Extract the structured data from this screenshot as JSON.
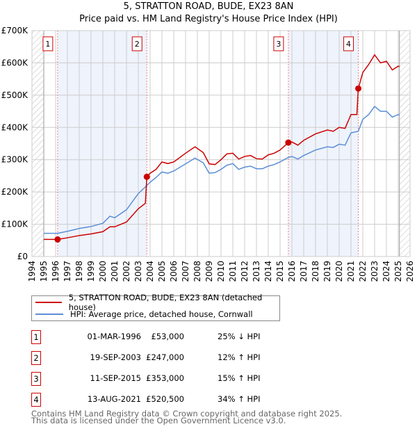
{
  "title_line1": "5, STRATTON ROAD, BUDE, EX23 8AN",
  "title_line2": "Price paid vs. HM Land Registry's House Price Index (HPI)",
  "chart_data": {
    "type": "line",
    "title": "5, STRATTON ROAD, BUDE, EX23 8AN — Price paid vs. HM Land Registry's House Price Index (HPI)",
    "xlim": [
      1994,
      2026
    ],
    "ylim": [
      0,
      700000
    ],
    "x_ticks": [
      "1994",
      "1995",
      "1996",
      "1997",
      "1998",
      "1999",
      "2000",
      "2001",
      "2002",
      "2003",
      "2004",
      "2005",
      "2006",
      "2007",
      "2008",
      "2009",
      "2010",
      "2011",
      "2012",
      "2013",
      "2014",
      "2015",
      "2016",
      "2017",
      "2018",
      "2019",
      "2020",
      "2021",
      "2022",
      "2023",
      "2024",
      "2025",
      "2026"
    ],
    "y_ticks": [
      {
        "v": 0,
        "label": "£0"
      },
      {
        "v": 100000,
        "label": "£100K"
      },
      {
        "v": 200000,
        "label": "£200K"
      },
      {
        "v": 300000,
        "label": "£300K"
      },
      {
        "v": 400000,
        "label": "£400K"
      },
      {
        "v": 500000,
        "label": "£500K"
      },
      {
        "v": 600000,
        "label": "£600K"
      },
      {
        "v": 700000,
        "label": "£700K"
      }
    ],
    "grid": true,
    "data_range": [
      1995,
      2025.1
    ],
    "shaded_spans": [
      [
        1996.17,
        2003.72
      ],
      [
        2015.7,
        2021.62
      ]
    ],
    "series": [
      {
        "name": "5, STRATTON ROAD, BUDE, EX23 8AN (detached house)",
        "color": "#cc0000",
        "x": [
          1995,
          1996.17,
          1997,
          1998,
          1999,
          2000,
          2000.6,
          2001,
          2002,
          2003,
          2003.6,
          2003.72,
          2004,
          2004.5,
          2005,
          2005.5,
          2006,
          2007,
          2007.8,
          2008.5,
          2009,
          2009.5,
          2010,
          2010.5,
          2011,
          2011.5,
          2012,
          2012.5,
          2013,
          2013.5,
          2014,
          2014.5,
          2015,
          2015.7,
          2016,
          2016.5,
          2017,
          2018,
          2019,
          2019.5,
          2020,
          2020.5,
          2021,
          2021.5,
          2021.62,
          2022,
          2022.5,
          2023,
          2023.5,
          2024,
          2024.5,
          2025,
          2025.1
        ],
        "y": [
          53000,
          53000,
          58000,
          65000,
          70000,
          77000,
          92000,
          92000,
          107000,
          148000,
          165000,
          247000,
          258000,
          270000,
          293000,
          288000,
          293000,
          320000,
          340000,
          322000,
          287000,
          285000,
          300000,
          318000,
          320000,
          302000,
          310000,
          313000,
          303000,
          302000,
          315000,
          320000,
          330000,
          353000,
          355000,
          345000,
          360000,
          380000,
          392000,
          388000,
          400000,
          397000,
          440000,
          440000,
          520500,
          570000,
          595000,
          625000,
          600000,
          605000,
          578000,
          590000,
          588000
        ]
      },
      {
        "name": "HPI: Average price, detached house, Cornwall",
        "color": "#5b8fd6",
        "x": [
          1995,
          1996.17,
          1997,
          1998,
          1999,
          2000,
          2000.6,
          2001,
          2002,
          2003,
          2003.72,
          2004,
          2004.5,
          2005,
          2005.5,
          2006,
          2007,
          2007.8,
          2008.5,
          2009,
          2009.5,
          2010,
          2010.5,
          2011,
          2011.5,
          2012,
          2012.5,
          2013,
          2013.5,
          2014,
          2014.5,
          2015,
          2015.7,
          2016,
          2016.5,
          2017,
          2018,
          2019,
          2019.5,
          2020,
          2020.5,
          2021,
          2021.62,
          2022,
          2022.5,
          2023,
          2023.5,
          2024,
          2024.5,
          2025,
          2025.1
        ],
        "y": [
          72000,
          72000,
          78000,
          87000,
          93000,
          103000,
          125000,
          120000,
          145000,
          195000,
          220000,
          230000,
          245000,
          262000,
          258000,
          265000,
          287000,
          305000,
          290000,
          258000,
          260000,
          270000,
          283000,
          288000,
          270000,
          277000,
          280000,
          272000,
          272000,
          280000,
          285000,
          293000,
          307000,
          310000,
          302000,
          313000,
          330000,
          340000,
          338000,
          348000,
          345000,
          383000,
          388000,
          425000,
          440000,
          465000,
          450000,
          450000,
          432000,
          440000,
          438000
        ]
      }
    ],
    "sales": [
      {
        "n": "1",
        "x": 1996.17,
        "y": 53000
      },
      {
        "n": "2",
        "x": 2003.72,
        "y": 247000
      },
      {
        "n": "3",
        "x": 2015.7,
        "y": 353000
      },
      {
        "n": "4",
        "x": 2021.62,
        "y": 520500
      }
    ]
  },
  "legend": {
    "property": "5, STRATTON ROAD, BUDE, EX23 8AN (detached house)",
    "hpi": "HPI: Average price, detached house, Cornwall"
  },
  "transactions": [
    {
      "n": "1",
      "date": "01-MAR-1996",
      "price": "£53,000",
      "hpi": "25% ↓ HPI"
    },
    {
      "n": "2",
      "date": "19-SEP-2003",
      "price": "£247,000",
      "hpi": "12% ↑ HPI"
    },
    {
      "n": "3",
      "date": "11-SEP-2015",
      "price": "£353,000",
      "hpi": "15% ↑ HPI"
    },
    {
      "n": "4",
      "date": "13-AUG-2021",
      "price": "£520,500",
      "hpi": "34% ↑ HPI"
    }
  ],
  "footer": {
    "line1": "Contains HM Land Registry data © Crown copyright and database right 2025.",
    "line2": "This data is licensed under the Open Government Licence v3.0."
  }
}
